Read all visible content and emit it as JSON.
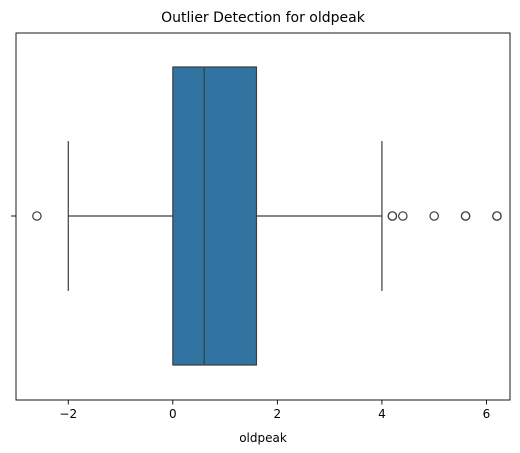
{
  "chart_data": {
    "type": "boxplot",
    "orientation": "horizontal",
    "title": "Outlier Detection for oldpeak",
    "xlabel": "oldpeak",
    "ylabel": "",
    "xlim": [
      -3.0,
      6.45
    ],
    "xticks": [
      -2,
      0,
      2,
      4,
      6
    ],
    "xtick_labels": [
      "−2",
      "0",
      "2",
      "4",
      "6"
    ],
    "grid": false,
    "box": {
      "q1": 0.0,
      "median": 0.6,
      "q3": 1.6,
      "whisker_low": -2.0,
      "whisker_high": 4.0,
      "color": "#3274a1",
      "edge_color": "#3d3d3d"
    },
    "outliers": [
      -2.6,
      4.2,
      4.2,
      4.4,
      5.0,
      5.6,
      5.6,
      6.2,
      6.2
    ]
  }
}
